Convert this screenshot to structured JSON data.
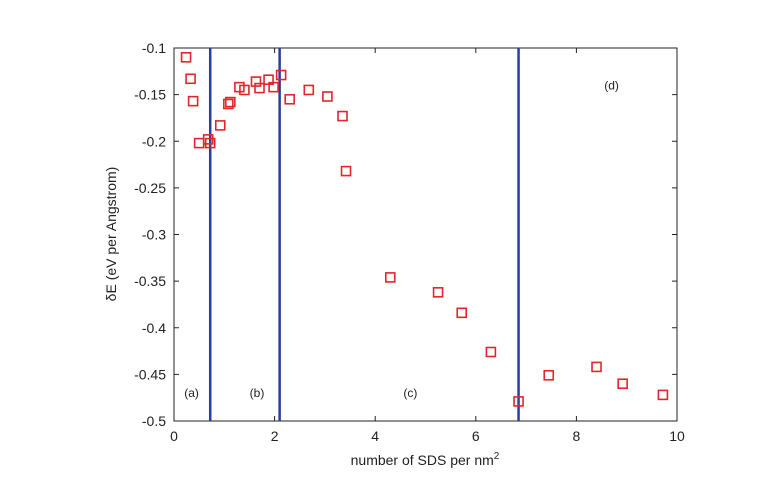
{
  "chart_data": {
    "type": "scatter",
    "title": "",
    "xlabel": "number of SDS per nm",
    "xlabel_superscript": "2",
    "ylabel": "δE (eV per Angstrom)",
    "xlim": [
      0,
      10
    ],
    "ylim": [
      -0.5,
      -0.1
    ],
    "xticks": [
      "0",
      "2",
      "4",
      "6",
      "8",
      "10"
    ],
    "yticks": [
      "-0.5",
      "-0.45",
      "-0.4",
      "-0.35",
      "-0.3",
      "-0.25",
      "-0.2",
      "-0.15",
      "-0.1"
    ],
    "grid": false,
    "marker": "square",
    "marker_color": "#e0262b",
    "line_color": "#2a3f9c",
    "vertical_lines_x": [
      0.72,
      2.1,
      6.85
    ],
    "region_labels": [
      {
        "text": "(a)",
        "x": 0.35,
        "y": -0.47
      },
      {
        "text": "(b)",
        "x": 1.65,
        "y": -0.47
      },
      {
        "text": "(c)",
        "x": 4.7,
        "y": -0.47
      },
      {
        "text": "(d)",
        "x": 8.7,
        "y": -0.14
      }
    ],
    "points": [
      {
        "x": 0.24,
        "y": -0.11
      },
      {
        "x": 0.33,
        "y": -0.133
      },
      {
        "x": 0.38,
        "y": -0.157
      },
      {
        "x": 0.5,
        "y": -0.202
      },
      {
        "x": 0.68,
        "y": -0.198
      },
      {
        "x": 0.72,
        "y": -0.202
      },
      {
        "x": 0.92,
        "y": -0.183
      },
      {
        "x": 1.08,
        "y": -0.16
      },
      {
        "x": 1.12,
        "y": -0.158
      },
      {
        "x": 1.3,
        "y": -0.142
      },
      {
        "x": 1.4,
        "y": -0.145
      },
      {
        "x": 1.63,
        "y": -0.136
      },
      {
        "x": 1.7,
        "y": -0.143
      },
      {
        "x": 1.88,
        "y": -0.134
      },
      {
        "x": 1.98,
        "y": -0.142
      },
      {
        "x": 2.13,
        "y": -0.129
      },
      {
        "x": 2.3,
        "y": -0.155
      },
      {
        "x": 2.68,
        "y": -0.145
      },
      {
        "x": 3.05,
        "y": -0.152
      },
      {
        "x": 3.35,
        "y": -0.173
      },
      {
        "x": 3.42,
        "y": -0.232
      },
      {
        "x": 4.3,
        "y": -0.346
      },
      {
        "x": 5.25,
        "y": -0.362
      },
      {
        "x": 5.72,
        "y": -0.384
      },
      {
        "x": 6.3,
        "y": -0.426
      },
      {
        "x": 6.85,
        "y": -0.479
      },
      {
        "x": 7.45,
        "y": -0.451
      },
      {
        "x": 8.4,
        "y": -0.442
      },
      {
        "x": 8.92,
        "y": -0.46
      },
      {
        "x": 9.72,
        "y": -0.472
      }
    ]
  }
}
